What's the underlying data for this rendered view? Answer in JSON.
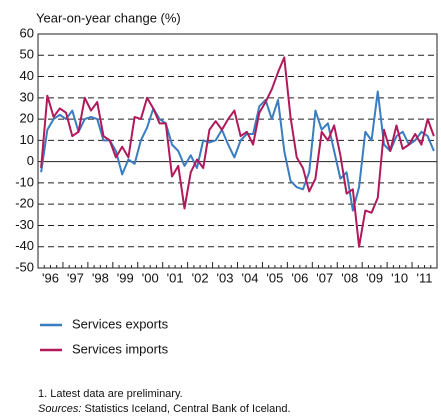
{
  "chart_data": {
    "type": "line",
    "y_label": "Year-on-year change (%)",
    "categories": [
      "'96",
      null,
      null,
      null,
      "'97",
      null,
      null,
      null,
      "'98",
      null,
      null,
      null,
      "'99",
      null,
      null,
      null,
      "'00",
      null,
      null,
      null,
      "'01",
      null,
      null,
      null,
      "'02",
      null,
      null,
      null,
      "'03",
      null,
      null,
      null,
      "'04",
      null,
      null,
      null,
      "'05",
      null,
      null,
      null,
      "'06",
      null,
      null,
      null,
      "'07",
      null,
      null,
      null,
      "'08",
      null,
      null,
      null,
      "'09",
      null,
      null,
      null,
      "'10",
      null,
      null,
      null,
      "'11",
      null,
      null,
      null
    ],
    "series": [
      {
        "name": "Services exports",
        "color": "#3a7dc0",
        "values": [
          -5,
          15,
          20,
          22,
          20,
          24,
          14,
          20,
          21,
          20,
          10,
          10,
          5,
          -6,
          1,
          -1,
          10,
          16,
          25,
          20,
          18,
          8,
          5,
          -2,
          3,
          -3,
          10,
          9,
          10,
          15,
          8,
          2,
          10,
          13,
          13,
          26,
          29,
          20,
          29,
          5,
          -9,
          -12,
          -13,
          -5,
          24,
          15,
          18,
          5,
          -8,
          -5,
          -23,
          -12,
          14,
          10,
          33,
          8,
          5,
          12,
          14,
          8,
          10,
          14,
          12,
          5
        ]
      },
      {
        "name": "Services imports",
        "color": "#b0195a",
        "values": [
          -3,
          31,
          21,
          25,
          23,
          12,
          14,
          30,
          24,
          28,
          12,
          10,
          2,
          7,
          2,
          21,
          20,
          30,
          25,
          18,
          18,
          -7,
          -2,
          -22,
          -5,
          1,
          -3,
          15,
          19,
          15,
          20,
          24,
          12,
          14,
          8,
          23,
          28,
          34,
          42,
          49,
          21,
          2,
          -3,
          -14,
          -8,
          14,
          10,
          17,
          3,
          -15,
          -13,
          -40,
          -23,
          -24,
          -17,
          15,
          5,
          17,
          6,
          8,
          13,
          8,
          20,
          12
        ]
      }
    ],
    "ylim": [
      -50,
      60
    ],
    "yticks": [
      -50,
      -40,
      -30,
      -20,
      -10,
      0,
      10,
      20,
      30,
      40,
      50,
      60
    ],
    "grid": true,
    "notes": [
      "1. Latest data are preliminary."
    ],
    "sources_label": "Sources:",
    "sources": "Statistics Iceland, Central Bank of Iceland."
  }
}
